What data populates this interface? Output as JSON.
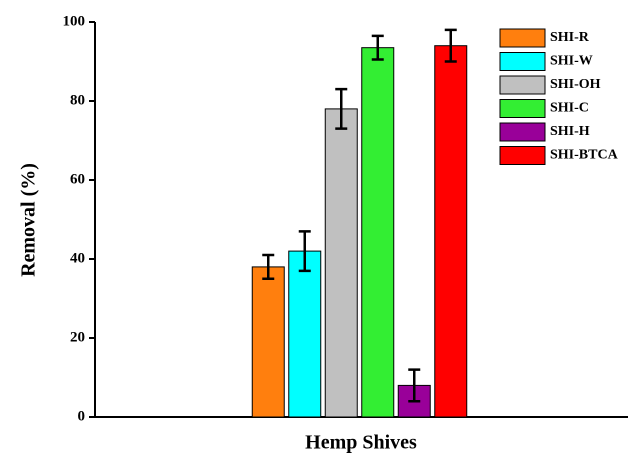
{
  "chart_data": {
    "type": "bar",
    "y_label": "Removal (%)",
    "x_label": "Hemp Shives",
    "series": [
      {
        "name": "SHI-R",
        "color": "#ff7f0e",
        "values": [
          38
        ],
        "errors": [
          3
        ]
      },
      {
        "name": "SHI-W",
        "color": "#00ffff",
        "values": [
          42
        ],
        "errors": [
          5
        ]
      },
      {
        "name": "SHI-OH",
        "color": "#c0c0c0",
        "values": [
          78
        ],
        "errors": [
          5
        ]
      },
      {
        "name": "SHI-C",
        "color": "#33ee33",
        "values": [
          93.5
        ],
        "errors": [
          3
        ]
      },
      {
        "name": "SHI-H",
        "color": "#990099",
        "values": [
          8
        ],
        "errors": [
          4
        ]
      },
      {
        "name": "SHI-BTCA",
        "color": "#ff0000",
        "values": [
          94
        ],
        "errors": [
          4
        ]
      }
    ],
    "ylim": [
      0,
      100
    ],
    "yticks": [
      0,
      20,
      40,
      60,
      80,
      100
    ],
    "grid": false,
    "legend": "upper right"
  }
}
